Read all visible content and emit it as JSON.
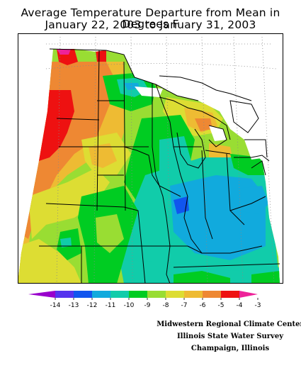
{
  "title_line1": "Average Temperature Departure from Mean in Degrees F",
  "title_line2": "January 22, 2003 to January 31, 2003",
  "legend": {
    "ticks": [
      "-14",
      "-13",
      "-12",
      "-11",
      "-10",
      "-9",
      "-8",
      "-7",
      "-6",
      "-5",
      "-4",
      "-3"
    ],
    "colors": [
      "#9900cc",
      "#5533ee",
      "#1155ee",
      "#11aadd",
      "#11ccaa",
      "#00cc22",
      "#99dd33",
      "#dddd33",
      "#eebb33",
      "#ee8833",
      "#ee1111",
      "#ee2299"
    ]
  },
  "credits": {
    "line1": "Midwestern Regional Climate Center",
    "line2": "Illinois State Water Survey",
    "line3": "Champaign, Illinois"
  }
}
